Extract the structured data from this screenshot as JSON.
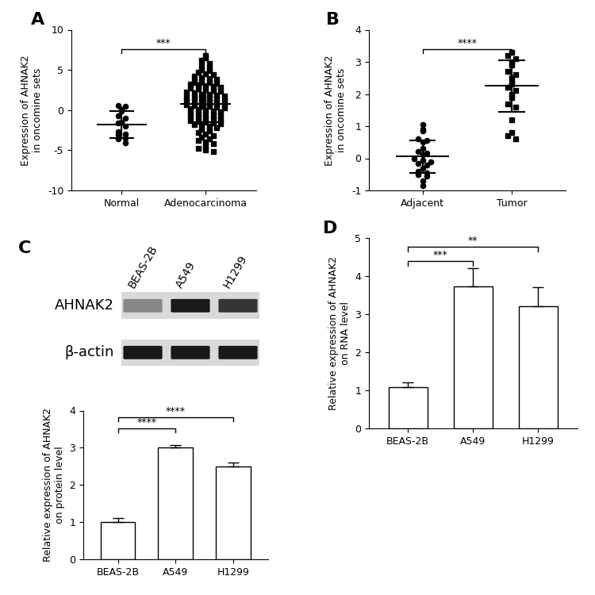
{
  "chart_data": [
    {
      "type": "scatter",
      "title": "A",
      "categories": [
        "Normal",
        "Adenocarcinoma"
      ],
      "values": [
        [
          0.6,
          0.5,
          0.1,
          -0.1,
          -0.7,
          -1.0,
          -1.5,
          -1.6,
          -2.0,
          -2.7,
          -3.0,
          -3.1,
          -3.5,
          -3.6,
          -4.1
        ],
        [
          6.8,
          6.5,
          6.2,
          5.8,
          5.6,
          5.3,
          5.0,
          4.9,
          4.7,
          4.5,
          4.4,
          4.2,
          4.0,
          3.9,
          3.8,
          3.6,
          3.5,
          3.4,
          3.3,
          3.2,
          3.1,
          3.0,
          2.9,
          2.8,
          2.7,
          2.6,
          2.5,
          2.4,
          2.3,
          2.2,
          2.1,
          2.0,
          2.0,
          1.9,
          1.8,
          1.7,
          1.6,
          1.5,
          1.5,
          1.4,
          1.3,
          1.2,
          1.1,
          1.0,
          1.0,
          0.9,
          0.8,
          0.7,
          0.6,
          0.5,
          0.5,
          0.4,
          0.3,
          0.2,
          0.1,
          0.0,
          -0.1,
          -0.2,
          -0.3,
          -0.4,
          -0.5,
          -0.6,
          -0.7,
          -0.8,
          -0.9,
          -1.0,
          -1.1,
          -1.2,
          -1.3,
          -1.4,
          -1.5,
          -1.6,
          -1.7,
          -1.8,
          -1.9,
          -2.0,
          -2.2,
          -2.4,
          -2.6,
          -2.8,
          -3.0,
          -3.2,
          -3.4,
          -3.6,
          -3.8,
          -4.0,
          -4.2,
          -4.5,
          -4.8,
          -5.0,
          -5.2
        ]
      ],
      "mean": [
        -1.8,
        0.8
      ],
      "sd": [
        1.7,
        2.3
      ],
      "ylabel": "Expression of AHNAK2\nin oncomine sets",
      "ylim": [
        -10,
        10
      ],
      "yticks": [
        -10,
        -5,
        0,
        5,
        10
      ],
      "annotations": [
        {
          "text": "***",
          "from": 0,
          "to": 1
        }
      ]
    },
    {
      "type": "scatter",
      "title": "B",
      "categories": [
        "Adjacent",
        "Tumor"
      ],
      "values": [
        [
          1.05,
          0.9,
          0.85,
          0.6,
          0.55,
          0.5,
          0.3,
          0.2,
          0.15,
          0.1,
          0.0,
          -0.05,
          -0.1,
          -0.15,
          -0.2,
          -0.3,
          -0.4,
          -0.45,
          -0.5,
          -0.55,
          -0.7,
          -0.85
        ],
        [
          3.3,
          3.2,
          3.1,
          3.0,
          2.9,
          2.7,
          2.6,
          2.5,
          2.4,
          2.3,
          2.2,
          2.1,
          2.0,
          1.9,
          1.7,
          1.6,
          1.2,
          0.8,
          0.7,
          0.6
        ]
      ],
      "mean": [
        0.05,
        2.25
      ],
      "sd": [
        0.5,
        0.8
      ],
      "ylabel": "Expression of AHNAK2\nin oncomine sets",
      "ylim": [
        -1,
        4
      ],
      "yticks": [
        -1,
        0,
        1,
        2,
        3,
        4
      ],
      "annotations": [
        {
          "text": "****",
          "from": 0,
          "to": 1
        }
      ]
    },
    {
      "type": "bar",
      "title": "C",
      "categories": [
        "BEAS-2B",
        "A549",
        "H1299"
      ],
      "values": [
        1.0,
        3.0,
        2.5
      ],
      "sd": [
        0.12,
        0.08,
        0.1
      ],
      "color": "#ffffff",
      "ylabel": "Relative expression of AHNAK2\non protein level",
      "ylim": [
        0,
        4
      ],
      "yticks": [
        0,
        1,
        2,
        3,
        4
      ],
      "annotations": [
        {
          "text": "****",
          "from": 0,
          "to": 1
        },
        {
          "text": "****",
          "from": 0,
          "to": 2
        }
      ]
    },
    {
      "type": "bar",
      "title": "D",
      "categories": [
        "BEAS-2B",
        "A549",
        "H1299"
      ],
      "values": [
        1.08,
        3.72,
        3.2
      ],
      "sd": [
        0.13,
        0.48,
        0.5
      ],
      "color": "#ffffff",
      "ylabel": "Relative expression of AHNAK2\non RNA level",
      "ylim": [
        0,
        5
      ],
      "yticks": [
        0,
        1,
        2,
        3,
        4,
        5
      ],
      "annotations": [
        {
          "text": "***",
          "from": 0,
          "to": 1
        },
        {
          "text": "**",
          "from": 0,
          "to": 2
        }
      ]
    }
  ],
  "blot": {
    "lanes": [
      "BEAS-2B",
      "A549",
      "H1299"
    ],
    "rows": [
      "AHNAK2",
      "β-actin"
    ]
  }
}
